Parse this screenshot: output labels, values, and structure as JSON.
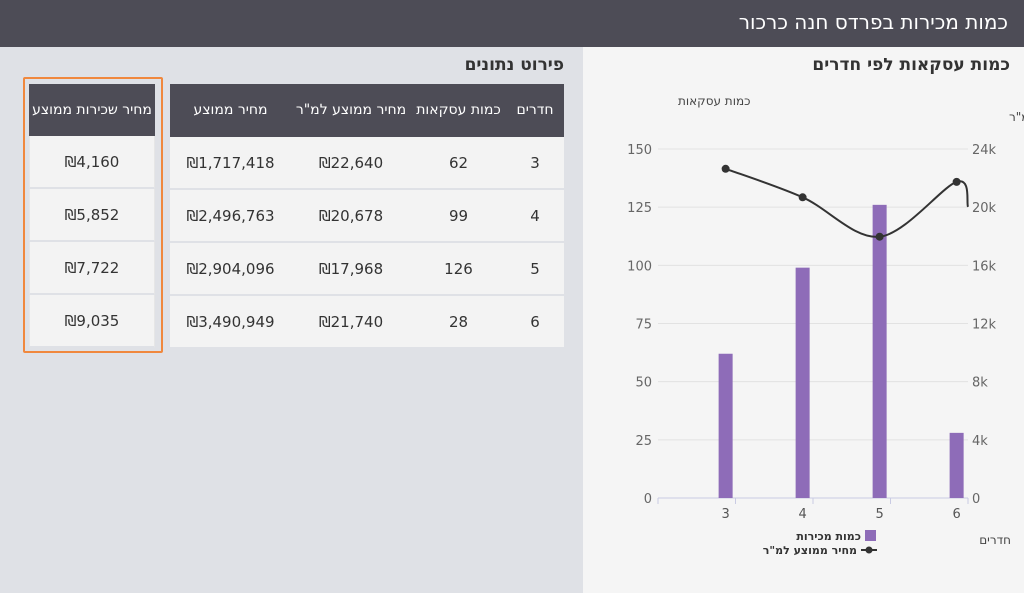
{
  "header": {
    "title": "כמות מכירות בפרדס חנה כרכור"
  },
  "table_section": {
    "title": "פירוט נתונים",
    "columns": [
      "חדרים",
      "כמות עסקאות",
      "מחיר ממוצע למ\"ר",
      "מחיר ממוצע"
    ],
    "rows": [
      [
        "3",
        "62",
        "₪22,640",
        "₪1,717,418"
      ],
      [
        "4",
        "99",
        "₪20,678",
        "₪2,496,763"
      ],
      [
        "5",
        "126",
        "₪17,968",
        "₪2,904,096"
      ],
      [
        "6",
        "28",
        "₪21,740",
        "₪3,490,949"
      ]
    ],
    "rent": {
      "header": "מחיר שכירות ממוצע",
      "values": [
        "₪4,160",
        "₪5,852",
        "₪7,722",
        "₪9,035"
      ]
    }
  },
  "chart_section": {
    "title": "כמות עסקאות לפי חדרים"
  },
  "chart_data": {
    "type": "bar",
    "categories": [
      "3",
      "4",
      "5",
      "6"
    ],
    "xlabel": "חדרים",
    "ylabel_left": "כמות עסקאות",
    "ylabel_right": "מחיר ממוצע למ\"ר",
    "ylim_left": [
      0,
      150
    ],
    "ylim_right": [
      0,
      24000
    ],
    "yticks_left": [
      "0",
      "25",
      "50",
      "75",
      "100",
      "125",
      "150"
    ],
    "yticks_right": [
      "0",
      "4k",
      "8k",
      "12k",
      "16k",
      "20k",
      "24k"
    ],
    "series": [
      {
        "name": "כמות מכירות",
        "type": "bar",
        "axis": "left",
        "values": [
          62,
          99,
          126,
          28
        ],
        "color": "#8e6cb8"
      },
      {
        "name": "מחיר ממוצע למ\"ר",
        "type": "line",
        "axis": "right",
        "values": [
          22640,
          20678,
          17968,
          21740
        ],
        "color": "#333333"
      }
    ],
    "grid": true,
    "legend": "bottom"
  }
}
